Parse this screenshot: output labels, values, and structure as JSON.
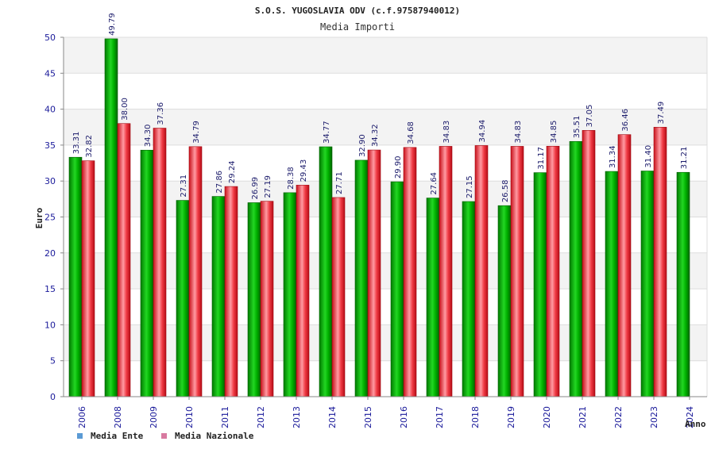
{
  "chart_data": {
    "type": "bar",
    "title": "S.O.S. YUGOSLAVIA ODV (c.f.97587940012)",
    "subtitle": "Media Importi",
    "xlabel": "Anno",
    "ylabel": "Euro",
    "ylim": [
      0,
      50
    ],
    "yticks": [
      0,
      5,
      10,
      15,
      20,
      25,
      30,
      35,
      40,
      45,
      50
    ],
    "grid": true,
    "legend_position": "bottom-left",
    "categories": [
      "2006",
      "2008",
      "2009",
      "2010",
      "2011",
      "2012",
      "2013",
      "2014",
      "2015",
      "2016",
      "2017",
      "2018",
      "2019",
      "2020",
      "2021",
      "2022",
      "2023",
      "2024"
    ],
    "series": [
      {
        "name": "Media Ente",
        "color": "#00a000",
        "legend_color": "#5b9bd5",
        "values": [
          33.31,
          49.79,
          34.3,
          27.31,
          27.86,
          26.99,
          28.38,
          34.77,
          32.9,
          29.9,
          27.64,
          27.15,
          26.58,
          31.17,
          35.51,
          31.34,
          31.4,
          31.21
        ],
        "labels": [
          "33.31",
          "49.79",
          "34.30",
          "27.31",
          "27.86",
          "26.99",
          "28.38",
          "34.77",
          "32.90",
          "29.90",
          "27.64",
          "27.15",
          "26.58",
          "31.17",
          "35.51",
          "31.34",
          "31.40",
          "31.21"
        ]
      },
      {
        "name": "Media Nazionale",
        "color": "#e8202a",
        "legend_color": "#d87aa0",
        "values": [
          32.82,
          38.0,
          37.36,
          34.79,
          29.24,
          27.19,
          29.43,
          27.71,
          34.32,
          34.68,
          34.83,
          34.94,
          34.83,
          34.85,
          37.05,
          36.46,
          37.49,
          null
        ],
        "labels": [
          "32.82",
          "38.00",
          "37.36",
          "34.79",
          "29.24",
          "27.19",
          "29.43",
          "27.71",
          "34.32",
          "34.68",
          "34.83",
          "34.94",
          "34.83",
          "34.85",
          "37.05",
          "36.46",
          "37.49",
          ""
        ]
      }
    ]
  }
}
